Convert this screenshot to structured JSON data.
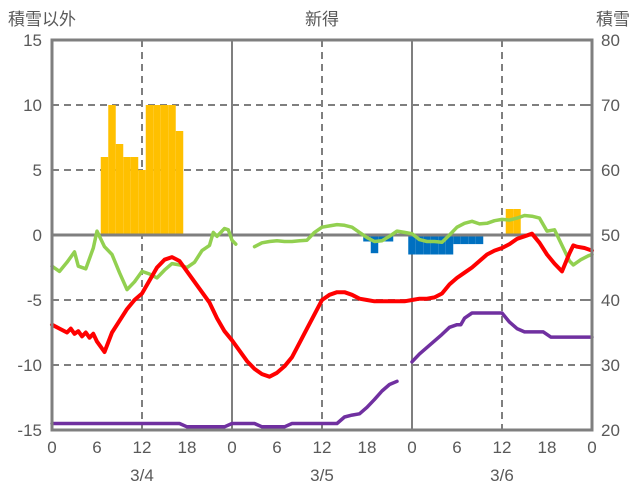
{
  "chart_data": {
    "type": "line",
    "title": "新得",
    "grid_color": "#7F7F7F",
    "text_color": "#595959",
    "left_axis": {
      "label": "積雪以外",
      "min": -15,
      "max": 15,
      "ticks": [
        15,
        10,
        5,
        0,
        -5,
        -10,
        -15
      ]
    },
    "right_axis": {
      "label": "積雪",
      "min": 20,
      "max": 80,
      "ticks": [
        80,
        70,
        60,
        50,
        40,
        30,
        20
      ]
    },
    "x_axis": {
      "hours": 72,
      "tick_interval": 6,
      "tick_labels": [
        "0",
        "6",
        "12",
        "18",
        "0",
        "6",
        "12",
        "18",
        "0",
        "6",
        "12",
        "18",
        "0"
      ],
      "date_labels": [
        {
          "label": "3/4",
          "hour": 12
        },
        {
          "label": "3/5",
          "hour": 36
        },
        {
          "label": "3/6",
          "hour": 60
        }
      ],
      "solid_gridlines": [
        24,
        48
      ],
      "dashed_gridlines": [
        12,
        36,
        60
      ]
    },
    "series": [
      {
        "name": "snowfall-bars",
        "type": "bar",
        "axis": "left",
        "color": "#FFC000",
        "points": [
          [
            7,
            6
          ],
          [
            8,
            10
          ],
          [
            9,
            7
          ],
          [
            10,
            6
          ],
          [
            11,
            6
          ],
          [
            12,
            5
          ],
          [
            13,
            10
          ],
          [
            14,
            10
          ],
          [
            15,
            10
          ],
          [
            16,
            10
          ],
          [
            17,
            8
          ],
          [
            61,
            2
          ],
          [
            62,
            2
          ]
        ]
      },
      {
        "name": "rainfall-bars",
        "type": "bar",
        "axis": "left",
        "color": "#0070C0",
        "points": [
          [
            42,
            -0.5
          ],
          [
            43,
            -1.4
          ],
          [
            44,
            -0.5
          ],
          [
            45,
            -0.5
          ],
          [
            48,
            -1.5
          ],
          [
            49,
            -1.5
          ],
          [
            50,
            -1.5
          ],
          [
            51,
            -1.5
          ],
          [
            52,
            -1.5
          ],
          [
            53,
            -1.5
          ],
          [
            54,
            -0.7
          ],
          [
            55,
            -0.7
          ],
          [
            56,
            -0.7
          ],
          [
            57,
            -0.7
          ]
        ]
      },
      {
        "name": "green-temp-line",
        "type": "line",
        "axis": "left",
        "color": "#92D050",
        "width": 3.5,
        "segments": [
          [
            [
              0,
              -2.4
            ],
            [
              1,
              -2.8
            ],
            [
              2,
              -2.1
            ],
            [
              3,
              -1.3
            ],
            [
              3.5,
              -2.4
            ],
            [
              4.5,
              -2.6
            ],
            [
              5.5,
              -1.0
            ],
            [
              6,
              0.3
            ],
            [
              7,
              -0.9
            ],
            [
              8,
              -1.5
            ],
            [
              9,
              -2.9
            ],
            [
              10,
              -4.2
            ],
            [
              11,
              -3.6
            ],
            [
              12,
              -2.8
            ],
            [
              13,
              -3.0
            ],
            [
              14,
              -3.3
            ],
            [
              15,
              -2.7
            ],
            [
              16,
              -2.2
            ],
            [
              17,
              -2.3
            ],
            [
              18,
              -2.5
            ],
            [
              19,
              -2.1
            ],
            [
              20,
              -1.2
            ],
            [
              21,
              -0.8
            ],
            [
              21.5,
              0.2
            ],
            [
              22,
              -0.1
            ],
            [
              23,
              0.5
            ],
            [
              23.5,
              0.4
            ],
            [
              24,
              -0.4
            ],
            [
              24.5,
              -0.7
            ]
          ],
          [
            [
              27,
              -0.9
            ],
            [
              28,
              -0.6
            ],
            [
              29,
              -0.5
            ],
            [
              30,
              -0.45
            ],
            [
              31,
              -0.5
            ],
            [
              32,
              -0.5
            ],
            [
              33,
              -0.45
            ],
            [
              34,
              -0.4
            ],
            [
              35,
              0.2
            ],
            [
              36,
              0.6
            ],
            [
              37,
              0.7
            ],
            [
              38,
              0.8
            ],
            [
              39,
              0.75
            ],
            [
              40,
              0.6
            ],
            [
              41,
              0.2
            ],
            [
              42,
              -0.2
            ],
            [
              43,
              -0.5
            ],
            [
              44,
              -0.45
            ],
            [
              45,
              -0.1
            ],
            [
              46,
              0.3
            ],
            [
              47,
              0.2
            ],
            [
              48,
              0.1
            ],
            [
              49,
              -0.35
            ],
            [
              50,
              -0.5
            ],
            [
              51,
              -0.5
            ],
            [
              52,
              -0.55
            ],
            [
              53,
              0
            ],
            [
              54,
              0.6
            ],
            [
              55,
              0.9
            ],
            [
              56,
              1.05
            ],
            [
              57,
              0.85
            ],
            [
              58,
              0.9
            ],
            [
              59,
              1.1
            ],
            [
              60,
              1.2
            ],
            [
              61,
              1.15
            ],
            [
              62,
              1.3
            ],
            [
              63,
              1.5
            ],
            [
              64,
              1.45
            ],
            [
              65,
              1.3
            ],
            [
              66,
              0.3
            ],
            [
              67,
              0.4
            ],
            [
              68,
              -0.8
            ],
            [
              69,
              -2.0
            ],
            [
              69.5,
              -2.3
            ],
            [
              70.5,
              -1.9
            ],
            [
              71.5,
              -1.6
            ],
            [
              72,
              -1.5
            ]
          ]
        ]
      },
      {
        "name": "red-temp-line",
        "type": "line",
        "axis": "left",
        "color": "#FF0000",
        "width": 4,
        "segments": [
          [
            [
              0,
              -6.9
            ],
            [
              1,
              -7.2
            ],
            [
              2,
              -7.5
            ],
            [
              2.5,
              -7.2
            ],
            [
              3,
              -7.6
            ],
            [
              3.5,
              -7.4
            ],
            [
              4,
              -7.8
            ],
            [
              4.5,
              -7.5
            ],
            [
              5,
              -7.9
            ],
            [
              5.5,
              -7.6
            ],
            [
              6,
              -8.2
            ],
            [
              7,
              -9.0
            ],
            [
              8,
              -7.5
            ],
            [
              9,
              -6.6
            ],
            [
              10,
              -5.7
            ],
            [
              11,
              -5.0
            ],
            [
              12,
              -4.5
            ],
            [
              13,
              -3.5
            ],
            [
              14,
              -2.5
            ],
            [
              15,
              -1.9
            ],
            [
              16,
              -1.7
            ],
            [
              17,
              -2.0
            ],
            [
              18,
              -2.8
            ],
            [
              19,
              -3.6
            ],
            [
              20,
              -4.4
            ],
            [
              21,
              -5.2
            ],
            [
              22,
              -6.4
            ],
            [
              23,
              -7.4
            ],
            [
              24,
              -8.1
            ],
            [
              25,
              -8.9
            ],
            [
              26,
              -9.7
            ],
            [
              27,
              -10.3
            ],
            [
              28,
              -10.7
            ],
            [
              29,
              -10.9
            ],
            [
              30,
              -10.6
            ],
            [
              31,
              -10.1
            ],
            [
              32,
              -9.4
            ],
            [
              33,
              -8.3
            ],
            [
              34,
              -7.2
            ],
            [
              35,
              -6.1
            ],
            [
              36,
              -5.0
            ],
            [
              37,
              -4.6
            ],
            [
              38,
              -4.4
            ],
            [
              39,
              -4.4
            ],
            [
              40,
              -4.6
            ],
            [
              41,
              -4.9
            ],
            [
              42,
              -5.0
            ],
            [
              43,
              -5.1
            ],
            [
              44,
              -5.1
            ],
            [
              45,
              -5.1
            ],
            [
              46,
              -5.1
            ],
            [
              47,
              -5.1
            ],
            [
              48,
              -5.0
            ],
            [
              49,
              -4.9
            ],
            [
              50,
              -4.9
            ],
            [
              51,
              -4.8
            ],
            [
              52,
              -4.5
            ],
            [
              53,
              -3.8
            ],
            [
              54,
              -3.3
            ],
            [
              55,
              -2.9
            ],
            [
              56,
              -2.5
            ],
            [
              57,
              -2.0
            ],
            [
              58,
              -1.5
            ],
            [
              59,
              -1.2
            ],
            [
              60,
              -1.0
            ],
            [
              61,
              -0.7
            ],
            [
              62,
              -0.3
            ],
            [
              63,
              -0.1
            ],
            [
              64,
              0.1
            ],
            [
              65,
              -0.6
            ],
            [
              66,
              -1.5
            ],
            [
              67,
              -2.2
            ],
            [
              68,
              -2.8
            ],
            [
              69,
              -1.4
            ],
            [
              69.5,
              -0.8
            ],
            [
              70,
              -0.9
            ],
            [
              71,
              -1.0
            ],
            [
              72,
              -1.2
            ]
          ]
        ]
      },
      {
        "name": "snow-depth-line",
        "type": "line",
        "axis": "right",
        "color": "#7030A0",
        "width": 3.5,
        "segments": [
          [
            [
              0,
              21
            ],
            [
              17,
              21
            ],
            [
              18,
              20.5
            ],
            [
              23,
              20.5
            ],
            [
              24,
              21
            ],
            [
              27,
              21
            ],
            [
              28,
              20.5
            ],
            [
              31,
              20.5
            ],
            [
              32,
              21
            ],
            [
              38,
              21
            ],
            [
              39,
              22
            ],
            [
              40,
              22.3
            ],
            [
              41,
              22.5
            ],
            [
              42,
              23.5
            ],
            [
              43,
              24.7
            ],
            [
              44,
              26
            ],
            [
              45,
              27
            ],
            [
              46,
              27.5
            ]
          ],
          [
            [
              48,
              30.5
            ],
            [
              49,
              31.7
            ],
            [
              50,
              32.7
            ],
            [
              51,
              33.7
            ],
            [
              52,
              34.7
            ],
            [
              53,
              35.8
            ],
            [
              54,
              36.2
            ],
            [
              54.5,
              36.2
            ],
            [
              55,
              37.2
            ],
            [
              56,
              38
            ],
            [
              60,
              38
            ],
            [
              61,
              36.6
            ],
            [
              62,
              35.6
            ],
            [
              63,
              35.1
            ],
            [
              65.5,
              35.1
            ],
            [
              66.5,
              34.3
            ],
            [
              72,
              34.3
            ]
          ]
        ]
      }
    ]
  }
}
